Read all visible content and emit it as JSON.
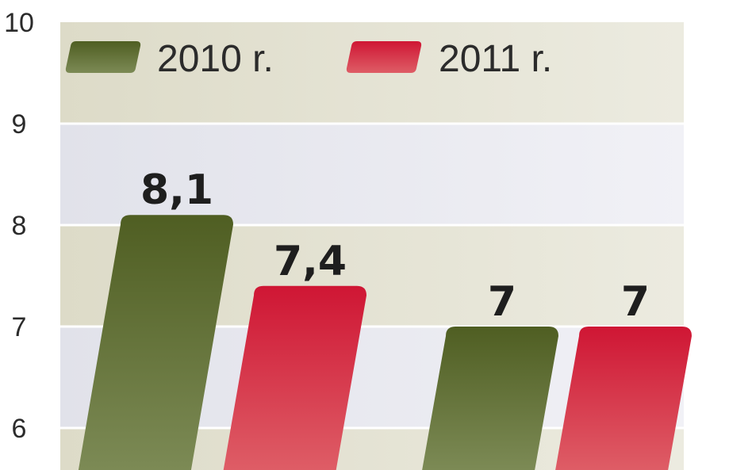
{
  "chart_data": {
    "type": "bar",
    "categories": [
      "",
      ""
    ],
    "series": [
      {
        "name": "2010 r.",
        "values": [
          8.1,
          7
        ],
        "labels": [
          "8,1",
          "7"
        ],
        "color": "#5c6b2e"
      },
      {
        "name": "2011 r.",
        "values": [
          7.4,
          7
        ],
        "labels": [
          "7,4",
          "7"
        ],
        "color": "#d42a3f"
      }
    ],
    "yticks": [
      10,
      9,
      8,
      7,
      6
    ],
    "ylim": [
      5.55,
      10
    ],
    "grid": true,
    "legend_position": "top-left",
    "colors": {
      "band_light": "#eaeaf0",
      "band_olive": "#dedcca"
    }
  }
}
